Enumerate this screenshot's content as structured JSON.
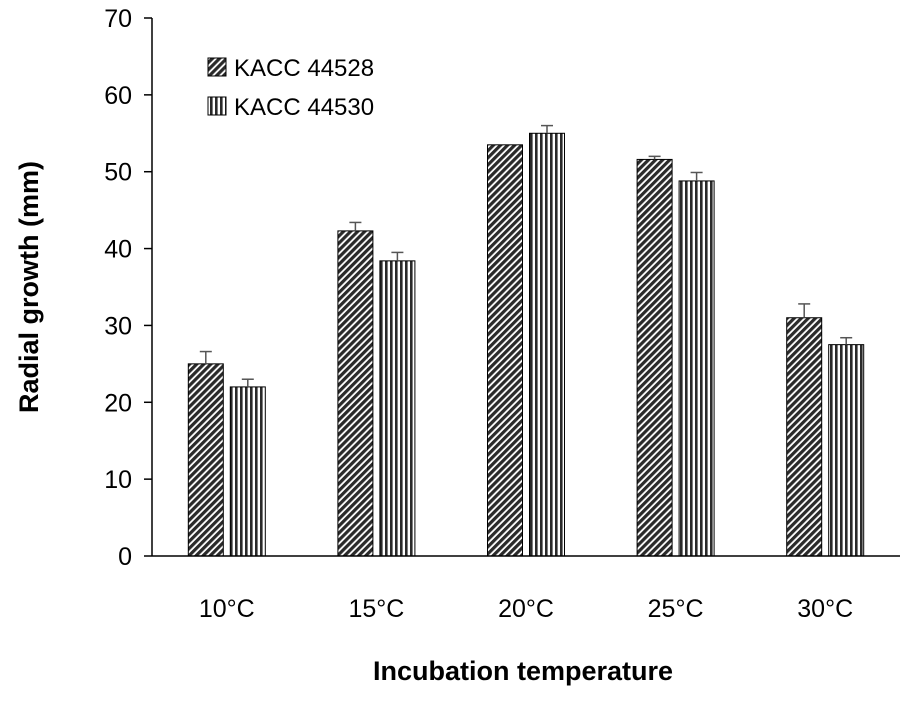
{
  "chart_data": {
    "type": "bar",
    "title": "",
    "xlabel": "Incubation temperature",
    "ylabel": "Radial growth (mm)",
    "categories": [
      "10°C",
      "15°C",
      "20°C",
      "25°C",
      "30°C"
    ],
    "ylim": [
      0,
      70
    ],
    "yticks": [
      0,
      10,
      20,
      30,
      40,
      50,
      60,
      70
    ],
    "grid": false,
    "legend_position": "top-left",
    "series": [
      {
        "name": "KACC 44528",
        "pattern": "diagonal-hatch",
        "values": [
          25.0,
          42.3,
          53.5,
          51.6,
          31.0
        ],
        "errors": [
          1.6,
          1.1,
          0.0,
          0.4,
          1.8
        ]
      },
      {
        "name": "KACC 44530",
        "pattern": "vertical-stripes",
        "values": [
          22.0,
          38.4,
          55.0,
          48.8,
          27.5
        ],
        "errors": [
          1.0,
          1.1,
          1.0,
          1.1,
          0.9
        ]
      }
    ]
  }
}
